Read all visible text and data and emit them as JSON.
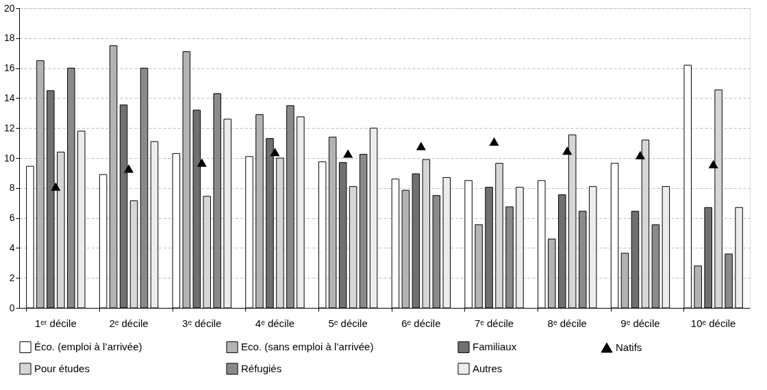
{
  "chart_data": {
    "type": "bar",
    "categories": [
      "1ᵉʳ décile",
      "2ᵉ décile",
      "3ᵉ décile",
      "4ᵉ décile",
      "5ᵉ décile",
      "6ᵉ décile",
      "7ᵉ décile",
      "8ᵉ décile",
      "9ᵉ décile",
      "10ᵉ décile"
    ],
    "ylim": [
      0,
      20
    ],
    "yticks": [
      0,
      2,
      4,
      6,
      8,
      10,
      12,
      14,
      16,
      18,
      20
    ],
    "grid": "y",
    "legend": "bottom",
    "series": [
      {
        "name": "Éco. (emploi à l’arrivée)",
        "color": "#ffffff",
        "values": [
          9.45,
          8.9,
          10.3,
          10.1,
          9.75,
          8.6,
          8.5,
          8.5,
          9.65,
          16.2
        ]
      },
      {
        "name": "Eco. (sans emploi à l’arrivée)",
        "color": "#b3b3b3",
        "values": [
          16.5,
          17.5,
          17.1,
          12.9,
          11.4,
          7.85,
          5.55,
          4.6,
          3.65,
          2.8
        ]
      },
      {
        "name": "Familiaux",
        "color": "#707070",
        "values": [
          14.5,
          13.55,
          13.2,
          11.3,
          9.7,
          8.95,
          8.05,
          7.55,
          6.45,
          6.7
        ]
      },
      {
        "name": "Natifs",
        "type": "scatter",
        "marker": "triangle",
        "color": "#000000",
        "values": [
          8.1,
          9.3,
          9.7,
          10.4,
          10.3,
          10.8,
          11.1,
          10.5,
          10.2,
          9.6
        ]
      },
      {
        "name": "Pour études",
        "color": "#d6d6d6",
        "values": [
          10.4,
          7.15,
          7.45,
          10.0,
          8.1,
          9.9,
          9.65,
          11.55,
          11.2,
          14.55
        ]
      },
      {
        "name": "Réfugiés",
        "color": "#8a8a8a",
        "values": [
          16.0,
          16.0,
          14.3,
          13.5,
          10.25,
          7.5,
          6.75,
          6.45,
          5.55,
          3.6
        ]
      },
      {
        "name": "Autres",
        "color": "#ececec",
        "values": [
          11.8,
          11.1,
          12.6,
          12.75,
          12.0,
          8.7,
          8.05,
          8.1,
          8.1,
          6.7
        ]
      }
    ]
  }
}
